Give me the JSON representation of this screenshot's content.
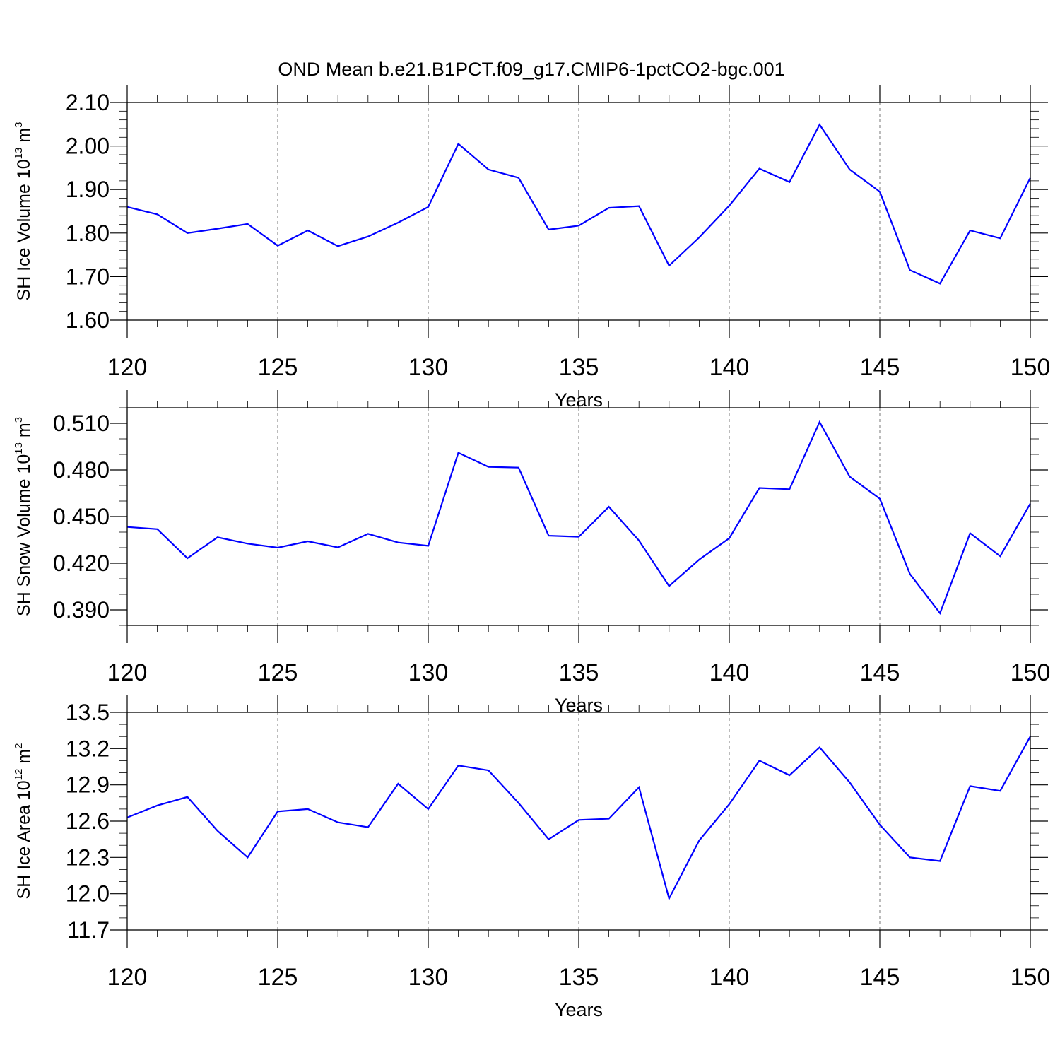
{
  "title": "OND Mean b.e21.B1PCT.f09_g17.CMIP6-1pctCO2-bgc.001",
  "colors": {
    "series": "#0000ff",
    "axis": "#000000",
    "grid": "#777777"
  },
  "chart_data": [
    {
      "type": "line",
      "id": "ice-volume",
      "ylabel": {
        "text": "SH Ice Volume 10",
        "sup1": "13",
        "unit": " m",
        "sup2": "3"
      },
      "xlabel": "Years",
      "xlim": [
        120,
        150
      ],
      "ylim": [
        1.6,
        2.1
      ],
      "yticks": [
        1.6,
        1.7,
        1.8,
        1.9,
        2.0,
        2.1
      ],
      "ytick_labels": [
        "1.60",
        "1.70",
        "1.80",
        "1.90",
        "2.00",
        "2.10"
      ],
      "yminor_step": 0.02,
      "xticks": [
        120,
        125,
        130,
        135,
        140,
        145,
        150
      ],
      "xtick_labels": [
        "120",
        "125",
        "130",
        "135",
        "140",
        "145",
        "150"
      ],
      "grid": "vertical dashed at major x ticks",
      "x": [
        120,
        121,
        122,
        123,
        124,
        125,
        126,
        127,
        128,
        129,
        130,
        131,
        132,
        133,
        134,
        135,
        136,
        137,
        138,
        139,
        140,
        141,
        142,
        143,
        144,
        145,
        146,
        147,
        148,
        149,
        150
      ],
      "values": [
        1.86,
        1.843,
        1.8,
        1.81,
        1.821,
        1.771,
        1.806,
        1.77,
        1.792,
        1.824,
        1.86,
        2.005,
        1.946,
        1.927,
        1.808,
        1.817,
        1.858,
        1.862,
        1.725,
        1.79,
        1.863,
        1.948,
        1.917,
        2.049,
        1.946,
        1.895,
        1.715,
        1.684,
        1.806,
        1.788,
        1.927
      ]
    },
    {
      "type": "line",
      "id": "snow-volume",
      "ylabel": {
        "text": "SH Snow Volume 10",
        "sup1": "13",
        "unit": " m",
        "sup2": "3"
      },
      "xlabel": "Years",
      "xlim": [
        120,
        150
      ],
      "ylim": [
        0.38,
        0.52
      ],
      "yticks": [
        0.39,
        0.42,
        0.45,
        0.48,
        0.51
      ],
      "ytick_labels": [
        "0.390",
        "0.420",
        "0.450",
        "0.480",
        "0.510"
      ],
      "yminor_step": 0.01,
      "xticks": [
        120,
        125,
        130,
        135,
        140,
        145,
        150
      ],
      "xtick_labels": [
        "120",
        "125",
        "130",
        "135",
        "140",
        "145",
        "150"
      ],
      "grid": "vertical dashed at major x ticks",
      "x": [
        120,
        121,
        122,
        123,
        124,
        125,
        126,
        127,
        128,
        129,
        130,
        131,
        132,
        133,
        134,
        135,
        136,
        137,
        138,
        139,
        140,
        141,
        142,
        143,
        144,
        145,
        146,
        147,
        148,
        149,
        150
      ],
      "values": [
        0.4433,
        0.4419,
        0.4232,
        0.4367,
        0.4326,
        0.43,
        0.4341,
        0.4302,
        0.4389,
        0.4333,
        0.4312,
        0.4911,
        0.482,
        0.4815,
        0.4377,
        0.437,
        0.4563,
        0.4346,
        0.4053,
        0.4223,
        0.4361,
        0.4684,
        0.4676,
        0.5108,
        0.4757,
        0.4615,
        0.4131,
        0.3878,
        0.4393,
        0.4245,
        0.4584
      ]
    },
    {
      "type": "line",
      "id": "ice-area",
      "ylabel": {
        "text": "SH Ice Area 10",
        "sup1": "12",
        "unit": " m",
        "sup2": "2"
      },
      "xlabel": "Years",
      "xlim": [
        120,
        150
      ],
      "ylim": [
        11.7,
        13.5
      ],
      "yticks": [
        11.7,
        12.0,
        12.3,
        12.6,
        12.9,
        13.2,
        13.5
      ],
      "ytick_labels": [
        "11.7",
        "12.0",
        "12.3",
        "12.6",
        "12.9",
        "13.2",
        "13.5"
      ],
      "yminor_step": 0.1,
      "xticks": [
        120,
        125,
        130,
        135,
        140,
        145,
        150
      ],
      "xtick_labels": [
        "120",
        "125",
        "130",
        "135",
        "140",
        "145",
        "150"
      ],
      "grid": "vertical dashed at major x ticks",
      "x": [
        120,
        121,
        122,
        123,
        124,
        125,
        126,
        127,
        128,
        129,
        130,
        131,
        132,
        133,
        134,
        135,
        136,
        137,
        138,
        139,
        140,
        141,
        142,
        143,
        144,
        145,
        146,
        147,
        148,
        149,
        150
      ],
      "values": [
        12.63,
        12.73,
        12.8,
        12.52,
        12.3,
        12.68,
        12.7,
        12.59,
        12.55,
        12.91,
        12.7,
        13.06,
        13.02,
        12.75,
        12.45,
        12.61,
        12.62,
        12.88,
        11.96,
        12.44,
        12.74,
        13.1,
        12.98,
        13.21,
        12.92,
        12.57,
        12.3,
        12.27,
        12.89,
        12.85,
        13.3
      ]
    }
  ]
}
